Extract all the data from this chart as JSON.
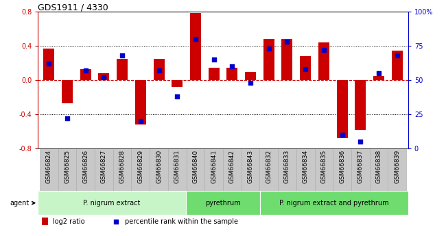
{
  "title": "GDS1911 / 4330",
  "samples": [
    "GSM66824",
    "GSM66825",
    "GSM66826",
    "GSM66827",
    "GSM66828",
    "GSM66829",
    "GSM66830",
    "GSM66831",
    "GSM66840",
    "GSM66841",
    "GSM66842",
    "GSM66843",
    "GSM66832",
    "GSM66833",
    "GSM66834",
    "GSM66835",
    "GSM66836",
    "GSM66837",
    "GSM66838",
    "GSM66839"
  ],
  "log2_ratio": [
    0.37,
    -0.27,
    0.13,
    0.08,
    0.25,
    -0.52,
    0.25,
    -0.08,
    0.79,
    0.15,
    0.15,
    0.1,
    0.48,
    0.48,
    0.28,
    0.44,
    -0.68,
    -0.58,
    0.05,
    0.35
  ],
  "pct_rank": [
    62,
    22,
    57,
    52,
    68,
    20,
    57,
    38,
    80,
    65,
    60,
    48,
    73,
    78,
    58,
    72,
    10,
    5,
    55,
    68
  ],
  "groups": [
    {
      "label": "P. nigrum extract",
      "start": 0,
      "end": 8,
      "color": "#c8f5c8"
    },
    {
      "label": "pyrethrum",
      "start": 8,
      "end": 12,
      "color": "#6fdc6f"
    },
    {
      "label": "P. nigrum extract and pyrethrum",
      "start": 12,
      "end": 20,
      "color": "#6fdc6f"
    }
  ],
  "ylim": [
    -0.8,
    0.8
  ],
  "yticks_left": [
    -0.8,
    -0.4,
    0.0,
    0.4,
    0.8
  ],
  "yticks_right_vals": [
    0,
    25,
    50,
    75,
    100
  ],
  "yticks_right_labels": [
    "0",
    "25",
    "50",
    "75",
    "100%"
  ],
  "bar_color": "#CC0000",
  "dot_color": "#0000CC",
  "zero_line_color": "#CC0000",
  "grid_line_color": "#000000",
  "title_fontsize": 9,
  "tick_fontsize": 7,
  "legend_bar_label": "log2 ratio",
  "legend_dot_label": "percentile rank within the sample",
  "agent_label": "agent",
  "xtick_bg_color": "#c8c8c8",
  "xtick_border_color": "#aaaaaa"
}
